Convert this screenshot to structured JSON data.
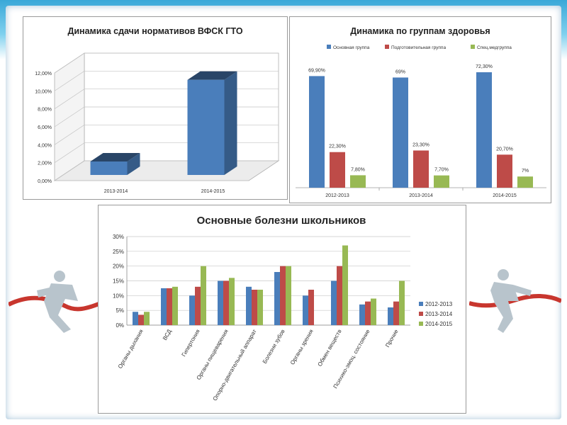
{
  "colors": {
    "series": [
      "#4a7ebb",
      "#be4b48",
      "#98b954"
    ],
    "gto_bar": "#4a7ebb",
    "frame": "#3aa8d8"
  },
  "chart_data": [
    {
      "type": "bar",
      "title": "Динамика сдачи нормативов ВФСК ГТО",
      "categories": [
        "2013-2014",
        "2014-2015"
      ],
      "values": [
        1.5,
        10.6
      ],
      "ylim": [
        0,
        12
      ],
      "yticks": [
        "0,00%",
        "2,00%",
        "4,00%",
        "6,00%",
        "8,00%",
        "10,00%",
        "12,00%"
      ],
      "style": "3d",
      "grid": true
    },
    {
      "type": "bar",
      "title": "Динамика по группам здоровья",
      "categories": [
        "2012-2013",
        "2013-2014",
        "2014-2015"
      ],
      "series": [
        {
          "name": "Основная группа",
          "values": [
            69.9,
            69,
            72.3
          ],
          "labels": [
            "69,90%",
            "69%",
            "72,30%"
          ]
        },
        {
          "name": "Подготовительная группа",
          "values": [
            22.3,
            23.3,
            20.7
          ],
          "labels": [
            "22,30%",
            "23,30%",
            "20,70%"
          ]
        },
        {
          "name": "Спец.медгруппа",
          "values": [
            7.8,
            7.7,
            7
          ],
          "labels": [
            "7,80%",
            "7,70%",
            "7%"
          ]
        }
      ],
      "legend": "top",
      "grid": false
    },
    {
      "type": "bar",
      "title": "Основные болезни школьников",
      "categories": [
        "Органы дыхания",
        "ВСД",
        "Гипертония",
        "Органы пищеварения",
        "Опорно-двигательный аппарат",
        "Болезни зубов",
        "Органы зрения",
        "Обмен веществ",
        "Психико-эмоц. состояние",
        "Прочие"
      ],
      "series": [
        {
          "name": "2012-2013",
          "values": [
            4.5,
            12.5,
            10,
            15,
            13,
            18,
            10,
            15,
            7,
            6
          ]
        },
        {
          "name": "2013-2014",
          "values": [
            3.5,
            12.5,
            13,
            15,
            12,
            20,
            12,
            20,
            8,
            8
          ]
        },
        {
          "name": "2014-2015",
          "values": [
            4.5,
            13,
            20,
            16,
            12,
            20,
            null,
            27,
            9,
            15
          ]
        }
      ],
      "ylim": [
        0,
        30
      ],
      "yticks": [
        "0%",
        "5%",
        "10%",
        "15%",
        "20%",
        "25%",
        "30%"
      ],
      "legend": "right",
      "grid": true
    }
  ]
}
